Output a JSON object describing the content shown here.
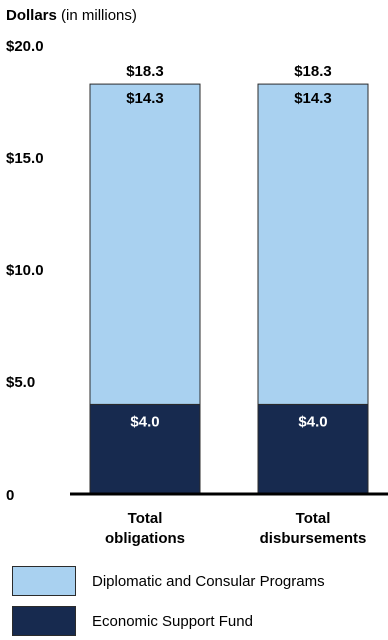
{
  "chart_data": {
    "type": "bar",
    "stacked": true,
    "ylabel": "Dollars",
    "ylabel_unit": "(in millions)",
    "ylim": [
      0,
      20
    ],
    "yticks": [
      {
        "value": 0,
        "label": "0"
      },
      {
        "value": 5,
        "label": "$5.0"
      },
      {
        "value": 10,
        "label": "$10.0"
      },
      {
        "value": 15,
        "label": "$15.0"
      },
      {
        "value": 20,
        "label": "$20.0"
      }
    ],
    "categories": [
      "Total obligations",
      "Total disbursements"
    ],
    "category_lines": [
      [
        "Total",
        "obligations"
      ],
      [
        "Total",
        "disbursements"
      ]
    ],
    "totals": [
      18.3,
      18.3
    ],
    "total_labels": [
      "$18.3",
      "$18.3"
    ],
    "series": [
      {
        "name": "Economic Support Fund",
        "values": [
          4.0,
          4.0
        ],
        "labels": [
          "$4.0",
          "$4.0"
        ],
        "color": "#172a4f"
      },
      {
        "name": "Diplomatic and Consular Programs",
        "values": [
          14.3,
          14.3
        ],
        "labels": [
          "$14.3",
          "$14.3"
        ],
        "color": "#a9d1f0"
      }
    ],
    "legend": [
      {
        "name": "Diplomatic and Consular Programs",
        "color": "#a9d1f0"
      },
      {
        "name": "Economic Support Fund",
        "color": "#172a4f"
      }
    ]
  }
}
